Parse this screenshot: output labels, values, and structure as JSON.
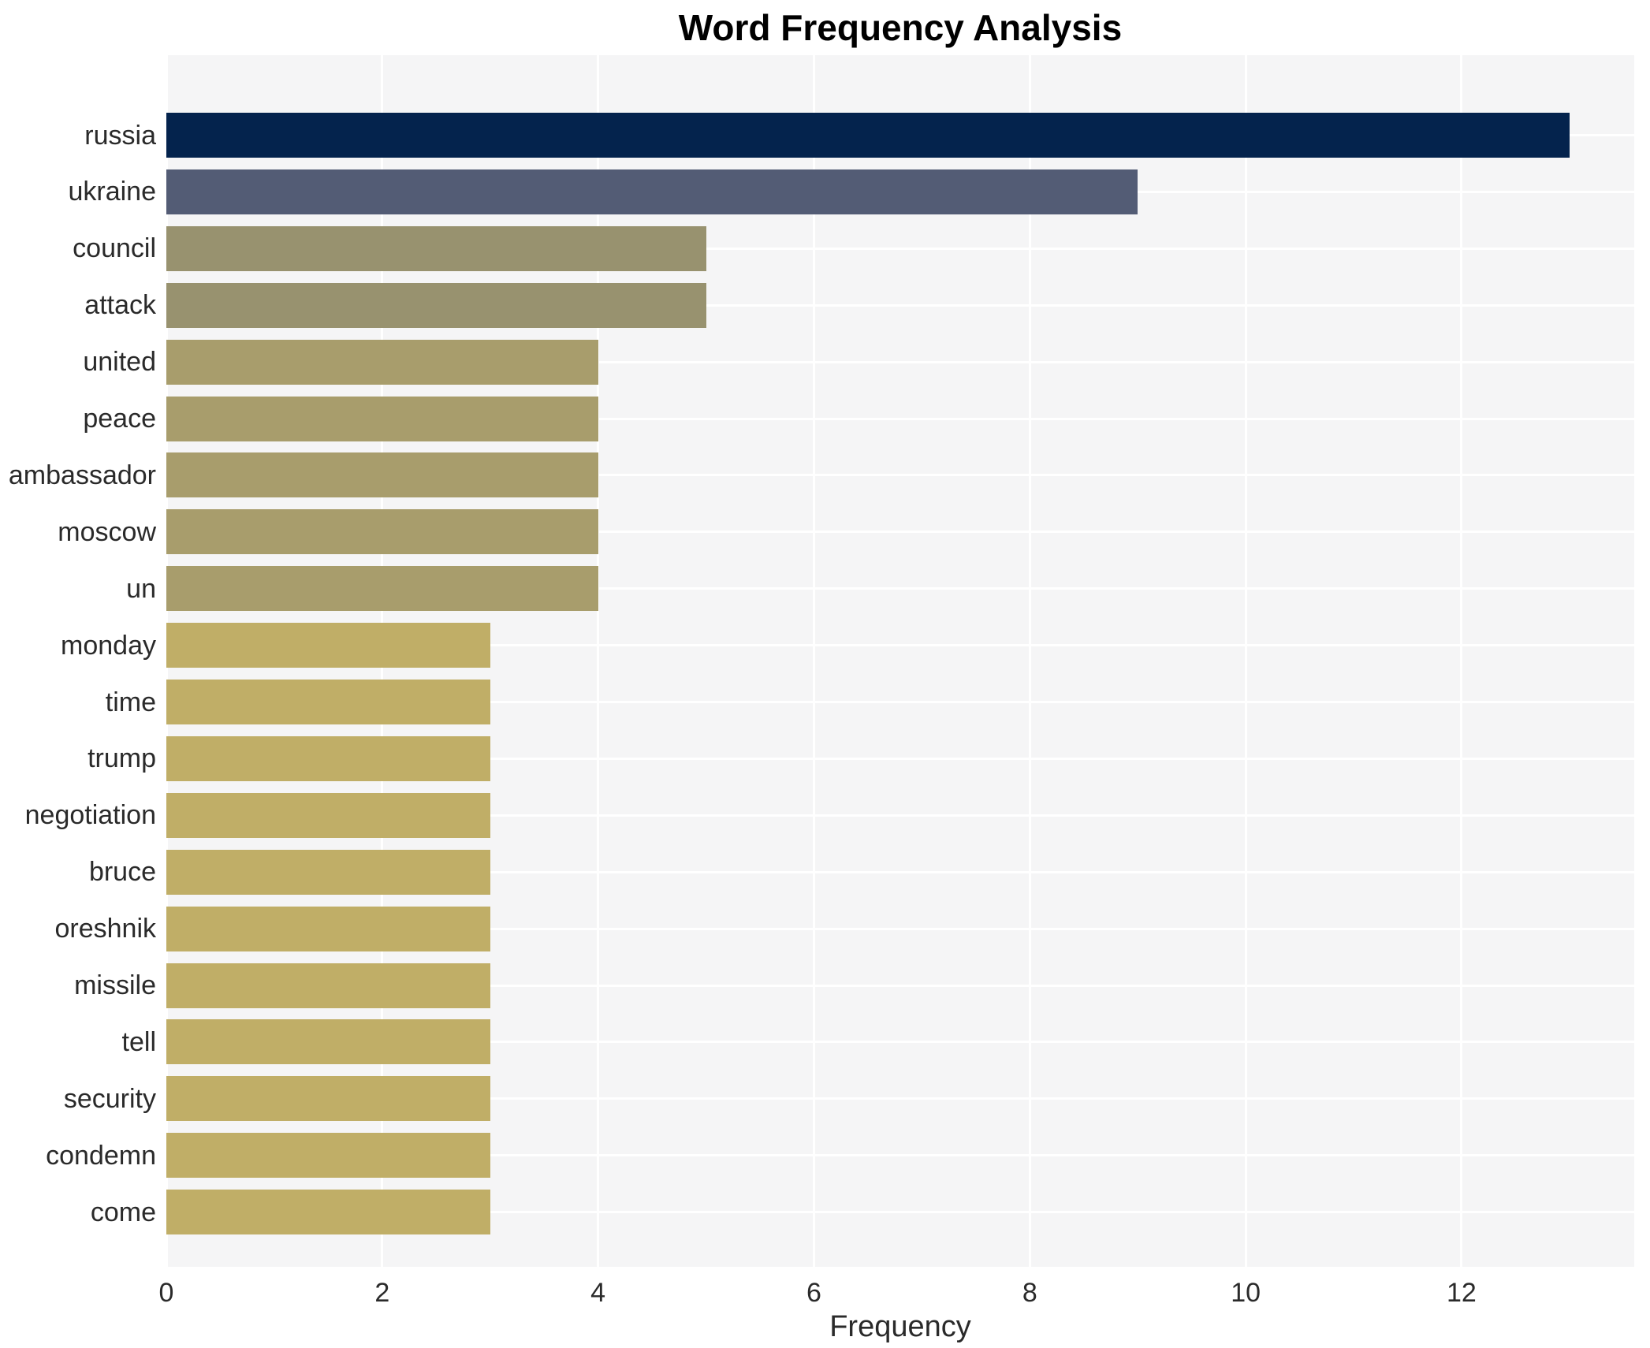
{
  "chart_data": {
    "type": "bar",
    "orientation": "horizontal",
    "title": "Word Frequency Analysis",
    "xlabel": "Frequency",
    "ylabel": "",
    "categories": [
      "russia",
      "ukraine",
      "council",
      "attack",
      "united",
      "peace",
      "ambassador",
      "moscow",
      "un",
      "monday",
      "time",
      "trump",
      "negotiation",
      "bruce",
      "oreshnik",
      "missile",
      "tell",
      "security",
      "condemn",
      "come"
    ],
    "values": [
      13,
      9,
      5,
      5,
      4,
      4,
      4,
      4,
      4,
      3,
      3,
      3,
      3,
      3,
      3,
      3,
      3,
      3,
      3,
      3
    ],
    "bar_colors": [
      "#04234d",
      "#535c75",
      "#98926f",
      "#98926f",
      "#a89d6c",
      "#a89d6c",
      "#a89d6c",
      "#a89d6c",
      "#a89d6c",
      "#c0ae67",
      "#c0ae67",
      "#c0ae67",
      "#c0ae67",
      "#c0ae67",
      "#c0ae67",
      "#c0ae67",
      "#c0ae67",
      "#c0ae67",
      "#c0ae67",
      "#c0ae67"
    ],
    "xticks": [
      0,
      2,
      4,
      6,
      8,
      10,
      12
    ],
    "xlim": [
      0,
      13.6
    ],
    "grid": true,
    "legend": false,
    "plot_background": "#f5f5f6",
    "gridline_color": "#ffffff",
    "text_color": "#2a2a2a",
    "title_color": "#000000"
  }
}
